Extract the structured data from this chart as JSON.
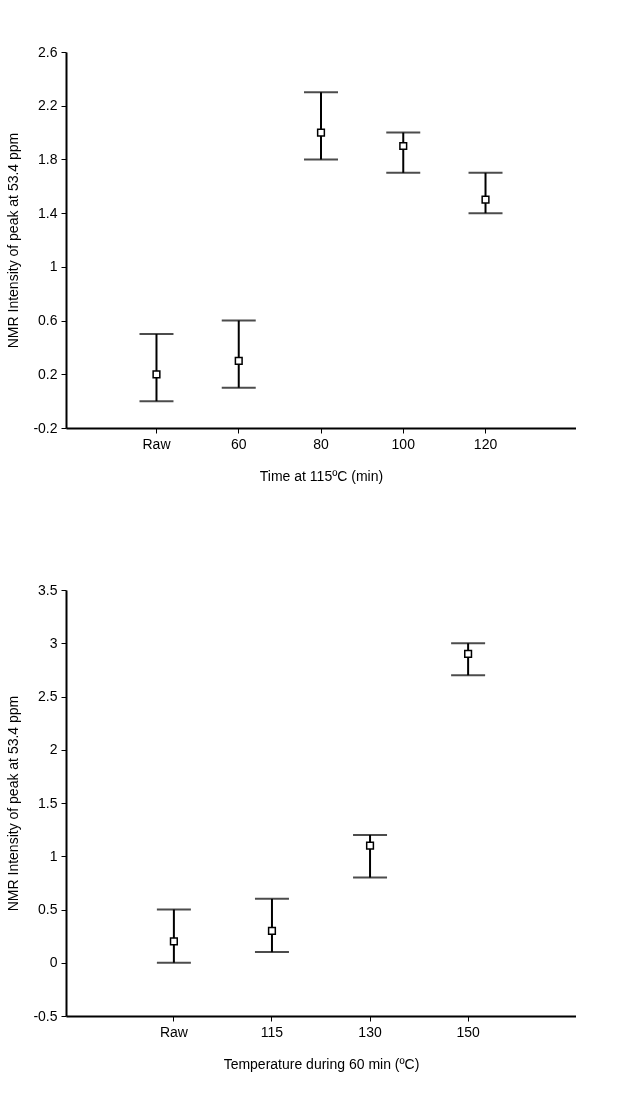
{
  "chart_data": [
    {
      "type": "scatter",
      "xlabel": "Time at 115ºC (min)",
      "ylabel": "NMR Intensity of peak at 53.4 ppm",
      "categories": [
        "Raw",
        "60",
        "80",
        "100",
        "120"
      ],
      "series": [
        {
          "color": "#000000",
          "values": [
            0.2,
            0.3,
            2.0,
            1.9,
            1.5
          ],
          "errors": [
            [
              0,
              0.5
            ],
            [
              0.1,
              0.6
            ],
            [
              1.8,
              2.3
            ],
            [
              1.7,
              2.0
            ],
            [
              1.4,
              1.7
            ]
          ]
        }
      ],
      "ylim": [
        -0.2,
        2.6
      ],
      "yticks": [
        -0.2,
        0.2,
        0.6,
        1,
        1.4,
        1.8,
        2.2,
        2.6
      ],
      "marker": "square"
    },
    {
      "type": "scatter",
      "xlabel": "Temperature during 60 min (ºC)",
      "ylabel": "NMR Intensity of peak at 53.4 ppm",
      "categories": [
        "Raw",
        "115",
        "130",
        "150"
      ],
      "series": [
        {
          "color": "#000000",
          "values": [
            0.2,
            0.3,
            1.1,
            2.9
          ],
          "errors": [
            [
              0,
              0.5
            ],
            [
              0.1,
              0.6
            ],
            [
              0.8,
              1.2
            ],
            [
              2.7,
              3.0
            ]
          ]
        }
      ],
      "ylim": [
        -0.5,
        3.5
      ],
      "yticks": [
        -0.5,
        0,
        0.5,
        1,
        1.5,
        2,
        2.5,
        3,
        3.5
      ],
      "marker": "square"
    }
  ]
}
